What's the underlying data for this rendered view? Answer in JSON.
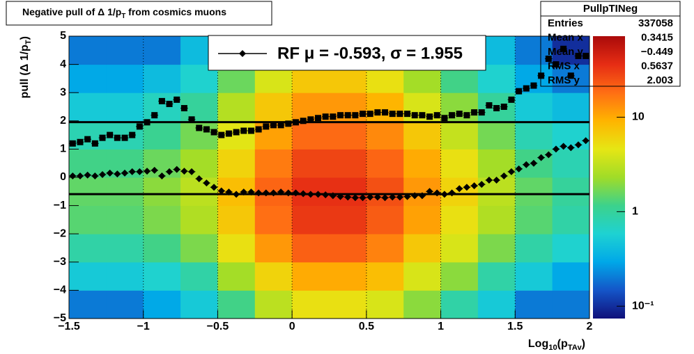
{
  "chart_data": {
    "type": "profile2d",
    "title": [
      "Negative pull of Δ 1/p",
      "T",
      " from cosmics muons"
    ],
    "x_label": [
      "Log",
      "10",
      "(p",
      "TAv",
      ")"
    ],
    "y_label": [
      "pull (Δ 1/p",
      "T",
      ")"
    ],
    "xlim": [
      -1.5,
      2
    ],
    "ylim": [
      -5,
      5
    ],
    "xticks": [
      {
        "value": -1.5,
        "label": "−1.5"
      },
      {
        "value": -1,
        "label": "−1"
      },
      {
        "value": -0.5,
        "label": "−0.5"
      },
      0,
      0.5,
      1,
      1.5,
      2
    ],
    "yticks": [
      {
        "value": -5,
        "label": "−5"
      },
      {
        "value": -4,
        "label": "−4"
      },
      {
        "value": -3,
        "label": "−3"
      },
      {
        "value": -2,
        "label": "−2"
      },
      {
        "value": -1,
        "label": "−1"
      },
      0,
      1,
      2,
      3,
      4,
      5
    ],
    "grid": "x",
    "zlim": [
      0.074,
      72
    ],
    "zlog": true,
    "zticks": [
      {
        "value": 0.1,
        "label": "10⁻¹"
      },
      1,
      10
    ],
    "palette": [
      "#10107a",
      "#1455c8",
      "#00a8e8",
      "#1ed2d2",
      "#3cd28c",
      "#a0dc28",
      "#e6e614",
      "#ffb400",
      "#ff6e14",
      "#e62d14",
      "#aa0a0a"
    ],
    "xbins": [
      -1.5,
      -1.25,
      -1,
      -0.75,
      -0.5,
      -0.25,
      0,
      0.25,
      0.5,
      0.75,
      1,
      1.25,
      1.5,
      1.75,
      2
    ],
    "ybins": [
      -5,
      -4,
      -3,
      -2,
      -1,
      0,
      1,
      2,
      3,
      4,
      5
    ],
    "z": [
      [
        0.2,
        0.2,
        0.3,
        0.5,
        1.2,
        3,
        5,
        5,
        4,
        2,
        0.9,
        0.5,
        0.2,
        0.2
      ],
      [
        0.5,
        0.5,
        0.6,
        0.9,
        2.4,
        6,
        10,
        10,
        8,
        4,
        2,
        0.9,
        0.5,
        0.3
      ],
      [
        0.9,
        0.9,
        1.2,
        1.8,
        5,
        12,
        21,
        21,
        15,
        7,
        4,
        1.8,
        0.9,
        0.6
      ],
      [
        1.4,
        1.4,
        1.8,
        2.7,
        7,
        18,
        32,
        32,
        22,
        11,
        5,
        2.7,
        1.4,
        0.9
      ],
      [
        1.5,
        1.5,
        2,
        3,
        8,
        20,
        35,
        35,
        25,
        12,
        6,
        3,
        1.5,
        1
      ],
      [
        1.2,
        1.2,
        1.6,
        2.4,
        6,
        16,
        28,
        28,
        20,
        10,
        5,
        2.4,
        1.2,
        0.8
      ],
      [
        0.8,
        0.8,
        1.1,
        1.7,
        4.4,
        11,
        19,
        19,
        14,
        7,
        3.3,
        1.7,
        0.8,
        0.6
      ],
      [
        0.5,
        0.5,
        0.7,
        1,
        2.8,
        7,
        12,
        12,
        9,
        4,
        2,
        1,
        0.5,
        0.4
      ],
      [
        0.3,
        0.3,
        0.4,
        0.6,
        1.6,
        4,
        7,
        7,
        5,
        2.4,
        1.2,
        0.6,
        0.3,
        0.2
      ],
      [
        0.2,
        0.2,
        0.2,
        0.4,
        1,
        2.4,
        4,
        4,
        3,
        1.4,
        0.7,
        0.4,
        0.2,
        0.1
      ]
    ],
    "x": [
      -1.475,
      -1.425,
      -1.375,
      -1.325,
      -1.275,
      -1.225,
      -1.175,
      -1.125,
      -1.075,
      -1.025,
      -0.975,
      -0.925,
      -0.875,
      -0.825,
      -0.775,
      -0.725,
      -0.675,
      -0.625,
      -0.575,
      -0.525,
      -0.475,
      -0.425,
      -0.375,
      -0.325,
      -0.275,
      -0.225,
      -0.175,
      -0.125,
      -0.075,
      -0.025,
      0.025,
      0.075,
      0.125,
      0.175,
      0.225,
      0.275,
      0.325,
      0.375,
      0.425,
      0.475,
      0.525,
      0.575,
      0.625,
      0.675,
      0.725,
      0.775,
      0.825,
      0.875,
      0.925,
      0.975,
      1.025,
      1.075,
      1.125,
      1.175,
      1.225,
      1.275,
      1.325,
      1.375,
      1.425,
      1.475,
      1.525,
      1.575,
      1.625,
      1.675,
      1.725,
      1.775,
      1.825,
      1.875,
      1.925,
      1.975
    ],
    "series": [
      {
        "marker": "diamond",
        "color": "#000000",
        "values": [
          0.05,
          0.05,
          0.08,
          0.05,
          0.1,
          0.15,
          0.12,
          0.15,
          0.2,
          0.2,
          0.22,
          0.25,
          0.05,
          0.2,
          0.28,
          0.22,
          0.2,
          -0.05,
          -0.2,
          -0.35,
          -0.48,
          -0.52,
          -0.6,
          -0.52,
          -0.52,
          -0.55,
          -0.55,
          -0.55,
          -0.52,
          -0.55,
          -0.55,
          -0.58,
          -0.6,
          -0.6,
          -0.62,
          -0.65,
          -0.68,
          -0.7,
          -0.72,
          -0.72,
          -0.7,
          -0.7,
          -0.72,
          -0.7,
          -0.7,
          -0.68,
          -0.65,
          -0.65,
          -0.5,
          -0.55,
          -0.6,
          -0.55,
          -0.4,
          -0.35,
          -0.3,
          -0.25,
          -0.1,
          -0.1,
          0.05,
          0.2,
          0.3,
          0.45,
          0.5,
          0.7,
          0.8,
          1.0,
          1.1,
          1.05,
          1.15,
          1.3
        ]
      },
      {
        "marker": "square",
        "color": "#000000",
        "values": [
          1.2,
          1.25,
          1.35,
          1.2,
          1.4,
          1.5,
          1.4,
          1.4,
          1.5,
          1.8,
          1.95,
          2.2,
          2.7,
          2.6,
          2.75,
          2.45,
          2.05,
          1.75,
          1.7,
          1.6,
          1.5,
          1.55,
          1.6,
          1.65,
          1.65,
          1.7,
          1.8,
          1.85,
          1.85,
          1.9,
          1.95,
          2.0,
          2.05,
          2.1,
          2.15,
          2.15,
          2.2,
          2.2,
          2.2,
          2.25,
          2.25,
          2.3,
          2.3,
          2.25,
          2.25,
          2.25,
          2.2,
          2.2,
          2.15,
          2.2,
          2.1,
          2.2,
          2.25,
          2.2,
          2.3,
          2.3,
          2.55,
          2.45,
          2.5,
          2.75,
          3.05,
          3.15,
          3.25,
          3.6,
          4.2,
          4.0,
          4.55,
          3.6,
          4.3,
          4.3
        ]
      }
    ],
    "fit": {
      "name": "RF μ = -0.593, σ =   1.955",
      "mean": -0.593,
      "sigma": 1.955,
      "color": "#000000"
    },
    "stats": {
      "title": "PullpTINeg",
      "rows": [
        {
          "label": "Entries",
          "value": 337058
        },
        {
          "label": "Mean x",
          "value": 0.3415
        },
        {
          "label": "Mean y",
          "value": "−0.449"
        },
        {
          "label": "RMS x",
          "value": 0.5637
        },
        {
          "label": "RMS y",
          "value": 2.003
        }
      ]
    }
  }
}
